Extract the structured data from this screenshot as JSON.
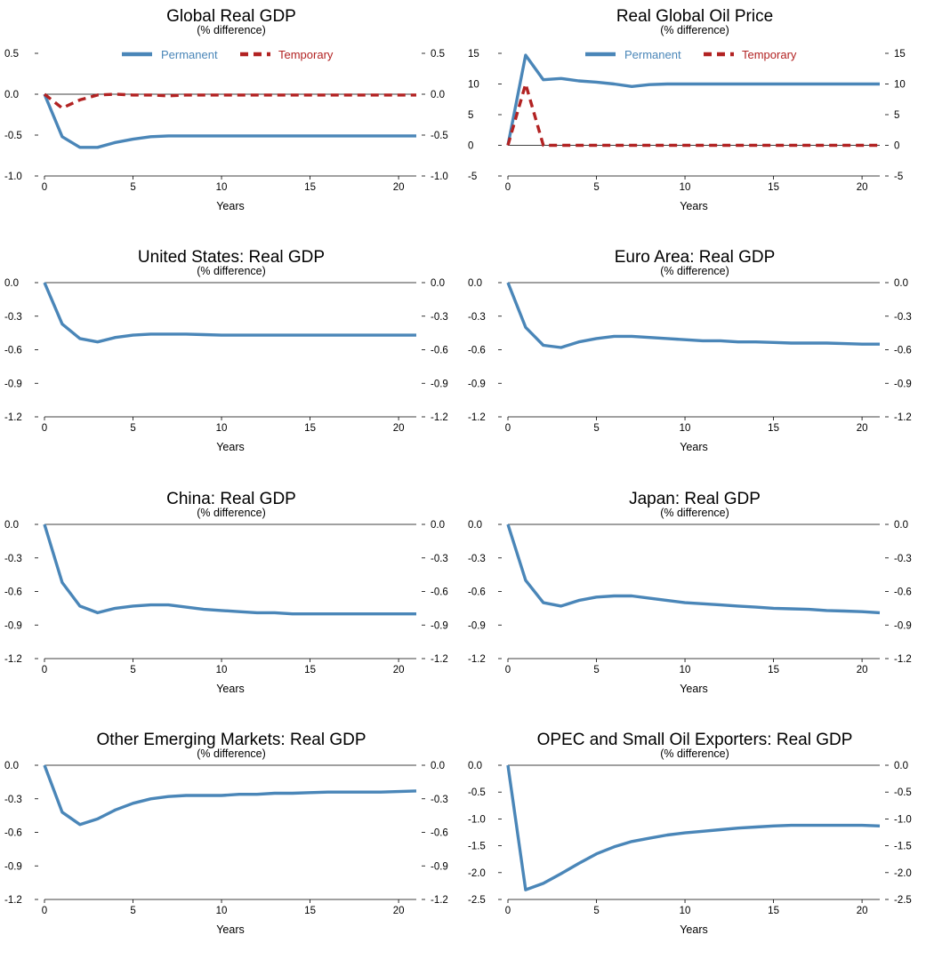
{
  "figure": {
    "colors": {
      "permanent": "#4a86b8",
      "temporary": "#b22222",
      "axis": "#000000"
    }
  },
  "chart_data": [
    {
      "type": "line",
      "title": "Global Real GDP",
      "subtitle": "(% difference)",
      "xlabel": "Years",
      "xlim": [
        0,
        21
      ],
      "xticks": [
        0,
        5,
        10,
        15,
        20
      ],
      "ylim": [
        -1.0,
        0.5
      ],
      "yticks": [
        -1.0,
        -0.5,
        0.0,
        0.5
      ],
      "ytick_labels": [
        "-1.0",
        "-0.5",
        "0.0",
        "0.5"
      ],
      "legend": {
        "placement": "top"
      },
      "series": [
        {
          "name": "Permanent",
          "style": "solid",
          "color": "#4a86b8",
          "x": [
            0,
            1,
            2,
            3,
            4,
            5,
            6,
            7,
            8,
            9,
            10,
            11,
            12,
            13,
            14,
            15,
            16,
            17,
            18,
            19,
            20,
            21
          ],
          "values": [
            0,
            -0.52,
            -0.65,
            -0.65,
            -0.59,
            -0.55,
            -0.52,
            -0.51,
            -0.51,
            -0.51,
            -0.51,
            -0.51,
            -0.51,
            -0.51,
            -0.51,
            -0.51,
            -0.51,
            -0.51,
            -0.51,
            -0.51,
            -0.51,
            -0.51
          ]
        },
        {
          "name": "Temporary",
          "style": "dashed",
          "color": "#b22222",
          "x": [
            0,
            1,
            2,
            3,
            4,
            5,
            6,
            7,
            8,
            9,
            10,
            11,
            12,
            13,
            14,
            15,
            16,
            17,
            18,
            19,
            20,
            21
          ],
          "values": [
            0,
            -0.17,
            -0.07,
            -0.01,
            0.0,
            -0.01,
            -0.01,
            -0.02,
            -0.01,
            -0.01,
            -0.01,
            -0.01,
            -0.01,
            -0.01,
            -0.01,
            -0.01,
            -0.01,
            -0.01,
            -0.01,
            -0.01,
            -0.01,
            -0.01
          ]
        }
      ]
    },
    {
      "type": "line",
      "title": "Real Global Oil Price",
      "subtitle": "(% difference)",
      "xlabel": "Years",
      "xlim": [
        0,
        21
      ],
      "xticks": [
        0,
        5,
        10,
        15,
        20
      ],
      "ylim": [
        -5,
        15
      ],
      "yticks": [
        -5,
        0,
        5,
        10,
        15
      ],
      "ytick_labels": [
        "-5",
        "0",
        "5",
        "10",
        "15"
      ],
      "legend": {
        "placement": "top"
      },
      "series": [
        {
          "name": "Permanent",
          "style": "solid",
          "color": "#4a86b8",
          "x": [
            0,
            1,
            2,
            3,
            4,
            5,
            6,
            7,
            8,
            9,
            10,
            11,
            12,
            13,
            14,
            15,
            16,
            17,
            18,
            19,
            20,
            21
          ],
          "values": [
            0,
            14.7,
            10.7,
            10.9,
            10.5,
            10.3,
            10.0,
            9.6,
            9.9,
            10.0,
            10.0,
            10.0,
            10.0,
            10.0,
            10.0,
            10.0,
            10.0,
            10.0,
            10.0,
            10.0,
            10.0,
            10.0
          ]
        },
        {
          "name": "Temporary",
          "style": "dashed",
          "color": "#b22222",
          "x": [
            0,
            1,
            2,
            3,
            4,
            5,
            6,
            7,
            8,
            9,
            10,
            11,
            12,
            13,
            14,
            15,
            16,
            17,
            18,
            19,
            20,
            21
          ],
          "values": [
            0,
            10.0,
            0.0,
            0,
            0,
            0,
            0,
            0,
            0,
            0,
            0,
            0,
            0,
            0,
            0,
            0,
            0,
            0,
            0,
            0,
            0,
            0
          ]
        }
      ]
    },
    {
      "type": "line",
      "title": "United States: Real GDP",
      "subtitle": "(% difference)",
      "xlabel": "Years",
      "xlim": [
        0,
        21
      ],
      "xticks": [
        0,
        5,
        10,
        15,
        20
      ],
      "ylim": [
        -1.2,
        0.0
      ],
      "yticks": [
        -1.2,
        -0.9,
        -0.6,
        -0.3,
        0.0
      ],
      "ytick_labels": [
        "-1.2",
        "-0.9",
        "-0.6",
        "-0.3",
        "0.0"
      ],
      "series": [
        {
          "style": "solid",
          "color": "#4a86b8",
          "x": [
            0,
            1,
            2,
            3,
            4,
            5,
            6,
            7,
            8,
            9,
            10,
            11,
            12,
            13,
            14,
            15,
            16,
            17,
            18,
            19,
            20,
            21
          ],
          "values": [
            0,
            -0.37,
            -0.5,
            -0.53,
            -0.49,
            -0.47,
            -0.46,
            -0.46,
            -0.46,
            -0.465,
            -0.47,
            -0.47,
            -0.47,
            -0.47,
            -0.47,
            -0.47,
            -0.47,
            -0.47,
            -0.47,
            -0.47,
            -0.47,
            -0.47
          ]
        }
      ]
    },
    {
      "type": "line",
      "title": "Euro Area: Real GDP",
      "subtitle": "(% difference)",
      "xlabel": "Years",
      "xlim": [
        0,
        21
      ],
      "xticks": [
        0,
        5,
        10,
        15,
        20
      ],
      "ylim": [
        -1.2,
        0.0
      ],
      "yticks": [
        -1.2,
        -0.9,
        -0.6,
        -0.3,
        0.0
      ],
      "ytick_labels": [
        "-1.2",
        "-0.9",
        "-0.6",
        "-0.3",
        "0.0"
      ],
      "series": [
        {
          "style": "solid",
          "color": "#4a86b8",
          "x": [
            0,
            1,
            2,
            3,
            4,
            5,
            6,
            7,
            8,
            9,
            10,
            11,
            12,
            13,
            14,
            15,
            16,
            17,
            18,
            19,
            20,
            21
          ],
          "values": [
            0,
            -0.4,
            -0.56,
            -0.58,
            -0.53,
            -0.5,
            -0.48,
            -0.48,
            -0.49,
            -0.5,
            -0.51,
            -0.52,
            -0.52,
            -0.53,
            -0.53,
            -0.535,
            -0.54,
            -0.54,
            -0.54,
            -0.545,
            -0.55,
            -0.55
          ]
        }
      ]
    },
    {
      "type": "line",
      "title": "China: Real GDP",
      "subtitle": "(% difference)",
      "xlabel": "Years",
      "xlim": [
        0,
        21
      ],
      "xticks": [
        0,
        5,
        10,
        15,
        20
      ],
      "ylim": [
        -1.2,
        0.0
      ],
      "yticks": [
        -1.2,
        -0.9,
        -0.6,
        -0.3,
        0.0
      ],
      "ytick_labels": [
        "-1.2",
        "-0.9",
        "-0.6",
        "-0.3",
        "0.0"
      ],
      "series": [
        {
          "style": "solid",
          "color": "#4a86b8",
          "x": [
            0,
            1,
            2,
            3,
            4,
            5,
            6,
            7,
            8,
            9,
            10,
            11,
            12,
            13,
            14,
            15,
            16,
            17,
            18,
            19,
            20,
            21
          ],
          "values": [
            0,
            -0.52,
            -0.73,
            -0.79,
            -0.75,
            -0.73,
            -0.72,
            -0.72,
            -0.74,
            -0.76,
            -0.77,
            -0.78,
            -0.79,
            -0.79,
            -0.8,
            -0.8,
            -0.8,
            -0.8,
            -0.8,
            -0.8,
            -0.8,
            -0.8
          ]
        }
      ]
    },
    {
      "type": "line",
      "title": "Japan: Real GDP",
      "subtitle": "(% difference)",
      "xlabel": "Years",
      "xlim": [
        0,
        21
      ],
      "xticks": [
        0,
        5,
        10,
        15,
        20
      ],
      "ylim": [
        -1.2,
        0.0
      ],
      "yticks": [
        -1.2,
        -0.9,
        -0.6,
        -0.3,
        0.0
      ],
      "ytick_labels": [
        "-1.2",
        "-0.9",
        "-0.6",
        "-0.3",
        "0.0"
      ],
      "series": [
        {
          "style": "solid",
          "color": "#4a86b8",
          "x": [
            0,
            1,
            2,
            3,
            4,
            5,
            6,
            7,
            8,
            9,
            10,
            11,
            12,
            13,
            14,
            15,
            16,
            17,
            18,
            19,
            20,
            21
          ],
          "values": [
            0,
            -0.5,
            -0.7,
            -0.73,
            -0.68,
            -0.65,
            -0.64,
            -0.64,
            -0.66,
            -0.68,
            -0.7,
            -0.71,
            -0.72,
            -0.73,
            -0.74,
            -0.75,
            -0.755,
            -0.76,
            -0.77,
            -0.775,
            -0.78,
            -0.79
          ]
        }
      ]
    },
    {
      "type": "line",
      "title": "Other Emerging Markets: Real GDP",
      "subtitle": "(% difference)",
      "xlabel": "Years",
      "xlim": [
        0,
        21
      ],
      "xticks": [
        0,
        5,
        10,
        15,
        20
      ],
      "ylim": [
        -1.2,
        0.0
      ],
      "yticks": [
        -1.2,
        -0.9,
        -0.6,
        -0.3,
        0.0
      ],
      "ytick_labels": [
        "-1.2",
        "-0.9",
        "-0.6",
        "-0.3",
        "0.0"
      ],
      "series": [
        {
          "style": "solid",
          "color": "#4a86b8",
          "x": [
            0,
            1,
            2,
            3,
            4,
            5,
            6,
            7,
            8,
            9,
            10,
            11,
            12,
            13,
            14,
            15,
            16,
            17,
            18,
            19,
            20,
            21
          ],
          "values": [
            0,
            -0.42,
            -0.53,
            -0.48,
            -0.4,
            -0.34,
            -0.3,
            -0.28,
            -0.27,
            -0.27,
            -0.27,
            -0.26,
            -0.26,
            -0.25,
            -0.25,
            -0.245,
            -0.24,
            -0.24,
            -0.24,
            -0.24,
            -0.235,
            -0.23
          ]
        }
      ]
    },
    {
      "type": "line",
      "title": "OPEC and Small Oil Exporters: Real GDP",
      "subtitle": "(% difference)",
      "xlabel": "Years",
      "xlim": [
        0,
        21
      ],
      "xticks": [
        0,
        5,
        10,
        15,
        20
      ],
      "ylim": [
        -2.5,
        0.0
      ],
      "yticks": [
        -2.5,
        -2.0,
        -1.5,
        -1.0,
        -0.5,
        0.0
      ],
      "ytick_labels": [
        "-2.5",
        "-2.0",
        "-1.5",
        "-1.0",
        "-0.5",
        "0.0"
      ],
      "series": [
        {
          "style": "solid",
          "color": "#4a86b8",
          "x": [
            0,
            1,
            2,
            3,
            4,
            5,
            6,
            7,
            8,
            9,
            10,
            11,
            12,
            13,
            14,
            15,
            16,
            17,
            18,
            19,
            20,
            21
          ],
          "values": [
            0,
            -2.32,
            -2.2,
            -2.02,
            -1.83,
            -1.65,
            -1.52,
            -1.42,
            -1.36,
            -1.3,
            -1.26,
            -1.23,
            -1.2,
            -1.17,
            -1.15,
            -1.13,
            -1.12,
            -1.12,
            -1.12,
            -1.12,
            -1.12,
            -1.13
          ]
        }
      ]
    }
  ]
}
